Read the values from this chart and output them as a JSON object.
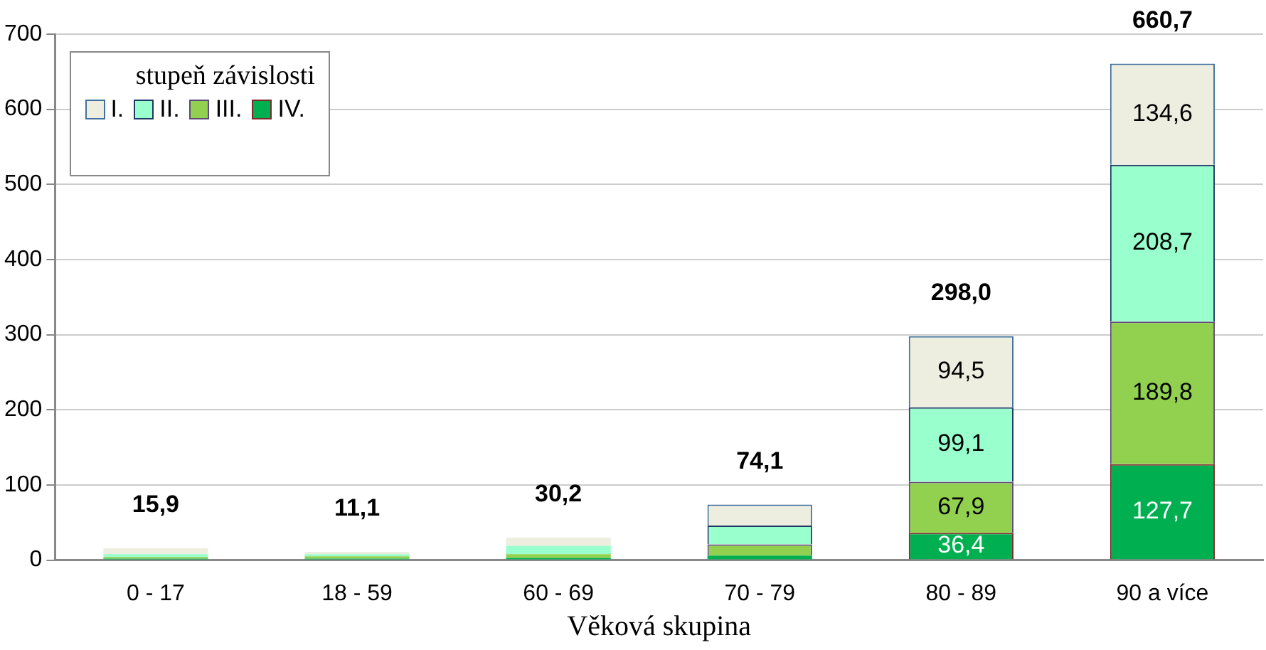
{
  "chart_data": {
    "type": "bar",
    "stacked": true,
    "xlabel": "Věková skupina",
    "legend_title": "stupeň závislosti",
    "legend": "top left",
    "grid": "y",
    "categories": [
      "0 - 17",
      "18 - 59",
      "60 - 69",
      "70 - 79",
      "80 - 89",
      "90 a více"
    ],
    "ylim": [
      0,
      700
    ],
    "yticks": [
      0,
      100,
      200,
      300,
      400,
      500,
      600,
      700
    ],
    "series": [
      {
        "name": "IV.",
        "color": "#00b050",
        "values": [
          2,
          2,
          3,
          6,
          36.4,
          127.7
        ],
        "value_labels": [
          null,
          null,
          null,
          null,
          "36,4",
          "127,7"
        ]
      },
      {
        "name": "III.",
        "color": "#92d050",
        "values": [
          2,
          3,
          5,
          15,
          67.9,
          189.8
        ],
        "value_labels": [
          null,
          null,
          null,
          null,
          "67,9",
          "189,8"
        ]
      },
      {
        "name": "II.",
        "color": "#99ffcc",
        "values": [
          4,
          3,
          11,
          25,
          99.1,
          208.7
        ],
        "value_labels": [
          null,
          null,
          null,
          null,
          "99,1",
          "208,7"
        ]
      },
      {
        "name": "I.",
        "color": "#eeeee0",
        "values": [
          8,
          3,
          11,
          28,
          94.5,
          134.6
        ],
        "value_labels": [
          null,
          null,
          null,
          null,
          "94,5",
          "134,6"
        ]
      }
    ],
    "totals": [
      "15,9",
      "11,1",
      "30,2",
      "74,1",
      "298,0",
      "660,7"
    ]
  }
}
